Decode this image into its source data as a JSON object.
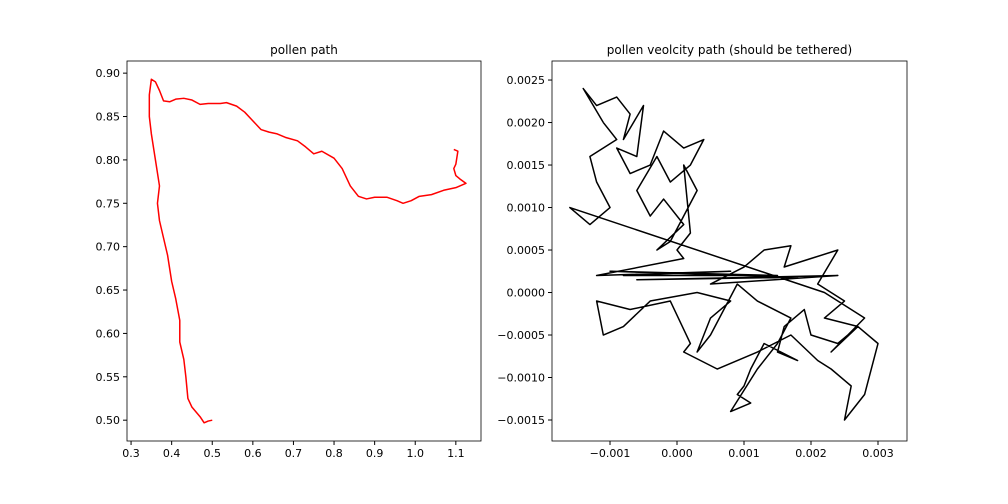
{
  "chart_data": [
    {
      "type": "line",
      "title": "pollen path",
      "color": "#ff0000",
      "x": [
        0.5,
        0.49,
        0.48,
        0.47,
        0.45,
        0.44,
        0.435,
        0.43,
        0.42,
        0.42,
        0.41,
        0.4,
        0.39,
        0.38,
        0.37,
        0.365,
        0.37,
        0.36,
        0.35,
        0.345,
        0.345,
        0.35,
        0.36,
        0.37,
        0.38,
        0.395,
        0.41,
        0.43,
        0.45,
        0.47,
        0.49,
        0.52,
        0.535,
        0.56,
        0.58,
        0.6,
        0.62,
        0.64,
        0.66,
        0.68,
        0.71,
        0.73,
        0.75,
        0.77,
        0.8,
        0.82,
        0.84,
        0.86,
        0.88,
        0.9,
        0.93,
        0.955,
        0.97,
        0.99,
        1.01,
        1.04,
        1.07,
        1.1,
        1.125,
        1.11,
        1.1,
        1.095,
        1.1,
        1.105,
        1.095
      ],
      "y": [
        0.5,
        0.499,
        0.497,
        0.504,
        0.515,
        0.525,
        0.55,
        0.57,
        0.59,
        0.615,
        0.64,
        0.66,
        0.69,
        0.71,
        0.73,
        0.75,
        0.77,
        0.8,
        0.83,
        0.85,
        0.875,
        0.893,
        0.89,
        0.88,
        0.868,
        0.867,
        0.87,
        0.871,
        0.869,
        0.864,
        0.865,
        0.865,
        0.866,
        0.862,
        0.855,
        0.845,
        0.835,
        0.832,
        0.83,
        0.826,
        0.822,
        0.815,
        0.807,
        0.81,
        0.802,
        0.79,
        0.77,
        0.758,
        0.755,
        0.757,
        0.757,
        0.753,
        0.75,
        0.753,
        0.758,
        0.76,
        0.765,
        0.768,
        0.773,
        0.778,
        0.782,
        0.79,
        0.795,
        0.81,
        0.812
      ],
      "xlim": [
        0.29,
        1.162
      ],
      "ylim": [
        0.476,
        0.914
      ],
      "xticks": [
        0.3,
        0.4,
        0.5,
        0.6,
        0.7,
        0.8,
        0.9,
        {
          "value": 1.0,
          "label": "1.0"
        },
        1.1
      ],
      "yticks": [
        {
          "value": 0.5,
          "label": "0.50"
        },
        0.55,
        {
          "value": 0.6,
          "label": "0.60"
        },
        0.65,
        {
          "value": 0.7,
          "label": "0.70"
        },
        0.75,
        {
          "value": 0.8,
          "label": "0.80"
        },
        0.85,
        {
          "value": 0.9,
          "label": "0.90"
        }
      ]
    },
    {
      "type": "line",
      "title": "pollen veolcity path (should be tethered)",
      "color": "#000000",
      "x": [
        -0.0011,
        -0.0014,
        -0.0012,
        -0.0009,
        -0.0007,
        -0.0008,
        -0.0005,
        -0.0006,
        -0.0009,
        -0.0007,
        -0.0004,
        -0.0002,
        0.0001,
        0.0004,
        0.0002,
        -0.0001,
        -0.0003,
        -0.0006,
        -0.0004,
        -0.0002,
        0.0001,
        -0.0003,
        -0.0001,
        0.0001,
        0.0003,
        0.0001,
        0.0002,
        0.0,
        0.0001,
        -0.0012,
        0.0008,
        -0.0008,
        0.0015,
        -0.001,
        0.0018,
        -0.0006,
        0.0024,
        0.0005,
        0.001,
        0.0013,
        0.0017,
        0.0016,
        0.002,
        0.0024,
        0.0021,
        0.0025,
        0.0022,
        0.0027,
        0.0024,
        0.002,
        0.0019,
        0.0016,
        0.0015,
        0.0018,
        0.0013,
        0.0011,
        0.001,
        0.0009,
        0.0011,
        0.0008,
        0.0012,
        0.0015,
        0.0017,
        0.0012,
        0.0009,
        0.0007,
        0.0005,
        0.0003,
        0.0005,
        0.0008,
        0.0003,
        -0.0004,
        -0.0008,
        -0.0011,
        -0.0012,
        -0.0007,
        -0.0001,
        0.0002,
        0.0001,
        0.0006,
        0.0012,
        0.0017,
        0.0021,
        0.0023,
        0.0026,
        0.0025,
        0.0028,
        0.003,
        0.0027,
        0.0023,
        0.0028,
        0.0022,
        -0.0016,
        -0.0013,
        -0.001,
        -0.0012,
        -0.0013,
        -0.0009,
        -0.0011
      ],
      "y": [
        0.002,
        0.0024,
        0.0022,
        0.0023,
        0.0021,
        0.0018,
        0.0022,
        0.0016,
        0.0017,
        0.0014,
        0.0015,
        0.0019,
        0.0017,
        0.0018,
        0.0015,
        0.0013,
        0.0016,
        0.0012,
        0.0009,
        0.0011,
        0.0008,
        0.0005,
        0.0006,
        0.0009,
        0.0012,
        0.0015,
        0.0007,
        0.0005,
        0.0004,
        0.0002,
        0.00025,
        0.0002,
        0.0002,
        0.00025,
        0.00018,
        0.00015,
        0.0002,
        0.0001,
        0.0003,
        0.0005,
        0.00055,
        0.0003,
        0.0004,
        0.0005,
        0.0001,
        -0.0001,
        -0.0003,
        -0.0004,
        -0.0006,
        -0.0005,
        -0.0002,
        -0.0004,
        -0.0007,
        -0.0008,
        -0.0006,
        -0.0009,
        -0.0011,
        -0.0012,
        -0.0013,
        -0.0014,
        -0.0009,
        -0.0006,
        -0.0003,
        -0.0001,
        0.0001,
        -0.0002,
        -0.0005,
        -0.0007,
        -0.0003,
        -0.0001,
        0.0,
        -0.0001,
        -0.0004,
        -0.0005,
        -0.0001,
        -0.0002,
        -0.0001,
        -0.0006,
        -0.0007,
        -0.0009,
        -0.0007,
        -0.0005,
        -0.0008,
        -0.0009,
        -0.0011,
        -0.0015,
        -0.0012,
        -0.0006,
        -0.0004,
        -0.0007,
        -0.0003,
        0.0,
        0.001,
        0.0008,
        0.001,
        0.0013,
        0.0016,
        0.0018,
        0.002
      ],
      "xlim": [
        -0.001866,
        0.003433
      ],
      "ylim": [
        -0.001747,
        0.002724
      ],
      "xticks": [
        {
          "value": -0.001,
          "label": "−0.001"
        },
        {
          "value": 0,
          "label": "0.000"
        },
        {
          "value": 0.001,
          "label": "0.001"
        },
        {
          "value": 0.002,
          "label": "0.002"
        },
        {
          "value": 0.003,
          "label": "0.003"
        }
      ],
      "yticks": [
        {
          "value": -0.0015,
          "label": "−0.0015"
        },
        {
          "value": -0.001,
          "label": "−0.0010"
        },
        {
          "value": -0.0005,
          "label": "−0.0005"
        },
        {
          "value": 0,
          "label": "0.0000"
        },
        0.0005,
        {
          "value": 0.001,
          "label": "0.0010"
        },
        0.0015,
        {
          "value": 0.002,
          "label": "0.0020"
        },
        0.0025
      ]
    }
  ]
}
